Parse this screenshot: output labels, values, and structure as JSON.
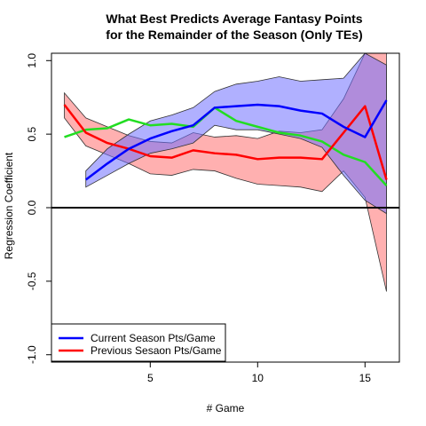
{
  "chart_data": {
    "type": "line",
    "title_line1": "What Best Predicts Average Fantasy Points",
    "title_line2": "for the Remainder of the Season (Only TEs)",
    "xlabel": "# Game",
    "ylabel": "Regression Coefficient",
    "xlim": [
      0.4,
      16.6
    ],
    "ylim": [
      -1.05,
      1.05
    ],
    "x_ticks": [
      5,
      10,
      15
    ],
    "y_ticks": [
      -1.0,
      -0.5,
      0.0,
      0.5,
      1.0
    ],
    "y_tick_labels": [
      "-1.0",
      "-0.5",
      "0.0",
      "0.5",
      "1.0"
    ],
    "zero_line": 0,
    "legend_position": "bottom-left",
    "colors": {
      "current": "#0000ff",
      "previous": "#ff0000",
      "green": "#22dd22",
      "current_band": "#7070ff",
      "previous_band": "#ff7070",
      "band_edge": "#333333"
    },
    "series": [
      {
        "name": "Current Season Pts/Game",
        "key": "current",
        "x": [
          2,
          3,
          4,
          5,
          6,
          7,
          8,
          9,
          10,
          11,
          12,
          13,
          14,
          15,
          16
        ],
        "values": [
          0.19,
          0.3,
          0.4,
          0.47,
          0.52,
          0.56,
          0.68,
          0.69,
          0.7,
          0.69,
          0.66,
          0.64,
          0.55,
          0.48,
          0.73
        ],
        "upper": [
          0.25,
          0.4,
          0.5,
          0.59,
          0.63,
          0.68,
          0.79,
          0.84,
          0.86,
          0.89,
          0.86,
          0.87,
          0.88,
          1.05,
          0.97
        ],
        "lower": [
          0.14,
          0.22,
          0.3,
          0.37,
          0.4,
          0.44,
          0.56,
          0.53,
          0.53,
          0.5,
          0.47,
          0.41,
          0.22,
          0.05,
          -0.04
        ]
      },
      {
        "name": "Previous Sesaon Pts/Game",
        "key": "previous",
        "x": [
          1,
          2,
          3,
          4,
          5,
          6,
          7,
          8,
          9,
          10,
          11,
          12,
          13,
          14,
          15,
          16
        ],
        "values": [
          0.7,
          0.51,
          0.44,
          0.4,
          0.35,
          0.34,
          0.39,
          0.37,
          0.36,
          0.33,
          0.34,
          0.34,
          0.33,
          0.51,
          0.69,
          0.19
        ],
        "upper": [
          0.78,
          0.61,
          0.55,
          0.49,
          0.45,
          0.44,
          0.51,
          0.48,
          0.49,
          0.47,
          0.52,
          0.51,
          0.53,
          0.74,
          1.05,
          1.05
        ],
        "lower": [
          0.61,
          0.42,
          0.36,
          0.3,
          0.23,
          0.22,
          0.26,
          0.25,
          0.2,
          0.16,
          0.15,
          0.14,
          0.11,
          0.25,
          0.07,
          -0.57
        ]
      },
      {
        "key": "green",
        "x": [
          1,
          2,
          3,
          4,
          5,
          6,
          7,
          8,
          9,
          10,
          11,
          12,
          13,
          14,
          15,
          16
        ],
        "values": [
          0.48,
          0.53,
          0.54,
          0.6,
          0.56,
          0.57,
          0.55,
          0.68,
          0.59,
          0.55,
          0.51,
          0.49,
          0.45,
          0.36,
          0.31,
          0.15
        ]
      }
    ]
  }
}
